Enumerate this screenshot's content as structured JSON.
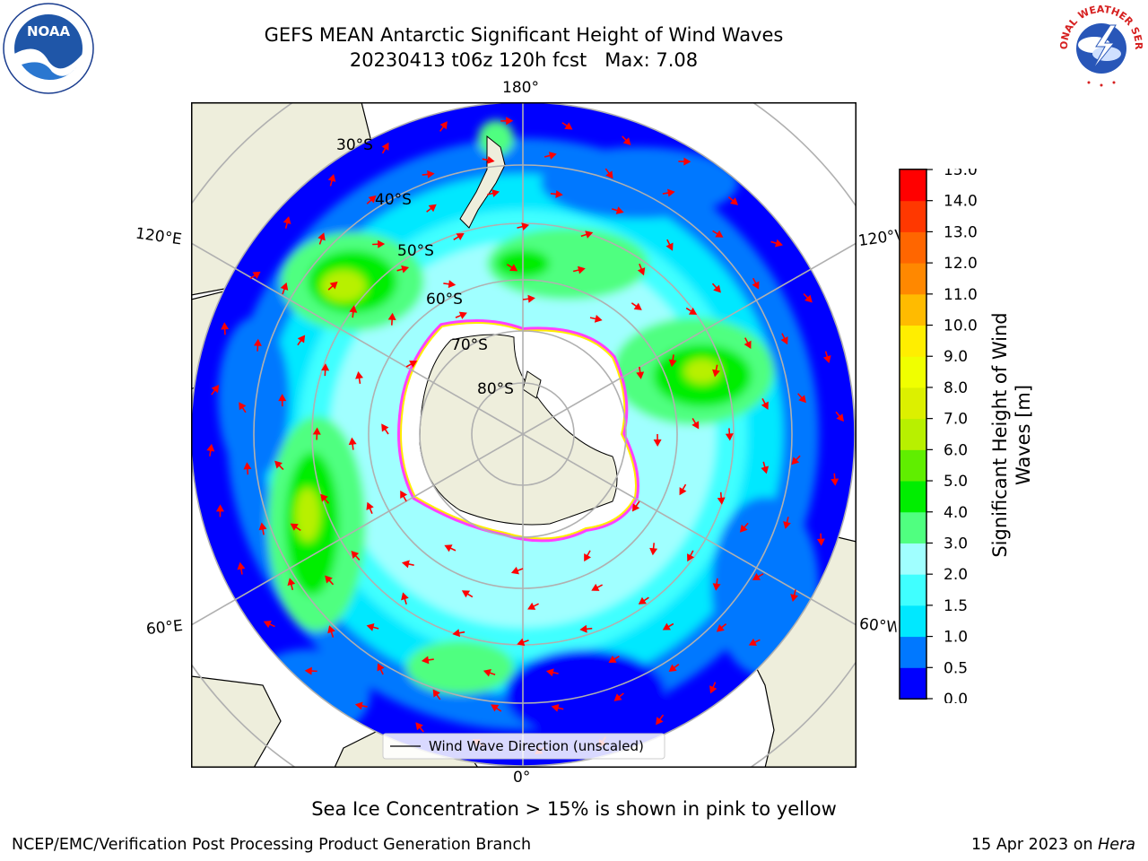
{
  "title": {
    "line1": "GEFS MEAN Antarctic Significant Height of Wind Waves",
    "line2": "20230413 t06z 120h fcst",
    "max": "Max: 7.08"
  },
  "map": {
    "meridian_labels": [
      "180°",
      "0°",
      "120°E",
      "60°E",
      "120°W",
      "60°W"
    ],
    "latitude_labels": [
      "30°S",
      "40°S",
      "50°S",
      "60°S",
      "70°S",
      "80°S"
    ],
    "legend": "Wind Wave Direction (unscaled)",
    "colors": {
      "land": "#eeeedc",
      "ice_edge": "#ff40ff",
      "arrow": "#ff0000",
      "grid": "#b0b0b0"
    }
  },
  "colorbar": {
    "label": "Significant Height of Wind Waves [m]",
    "ticks": [
      "0.0",
      "0.5",
      "1.0",
      "1.5",
      "2.0",
      "3.0",
      "4.0",
      "5.0",
      "6.0",
      "7.0",
      "8.0",
      "9.0",
      "10.0",
      "11.0",
      "12.0",
      "13.0",
      "14.0",
      "15.0"
    ],
    "colors": [
      "#0000ff",
      "#0078ff",
      "#00e8ff",
      "#40ffff",
      "#a0ffff",
      "#50ff80",
      "#00ee00",
      "#60ee00",
      "#b8f000",
      "#dcf000",
      "#f0ff00",
      "#ffee00",
      "#ffbb00",
      "#ff8800",
      "#ff6600",
      "#ff3800",
      "#ff0000"
    ]
  },
  "note": "Sea Ice Concentration > 15% is shown in pink to yellow",
  "footer": {
    "left": "NCEP/EMC/Verification Post Processing Product Generation Branch",
    "date": "15 Apr 2023 on",
    "machine": "Hera"
  },
  "logos": {
    "noaa": "NOAA",
    "nws": "NATIONAL WEATHER SERVICE"
  }
}
